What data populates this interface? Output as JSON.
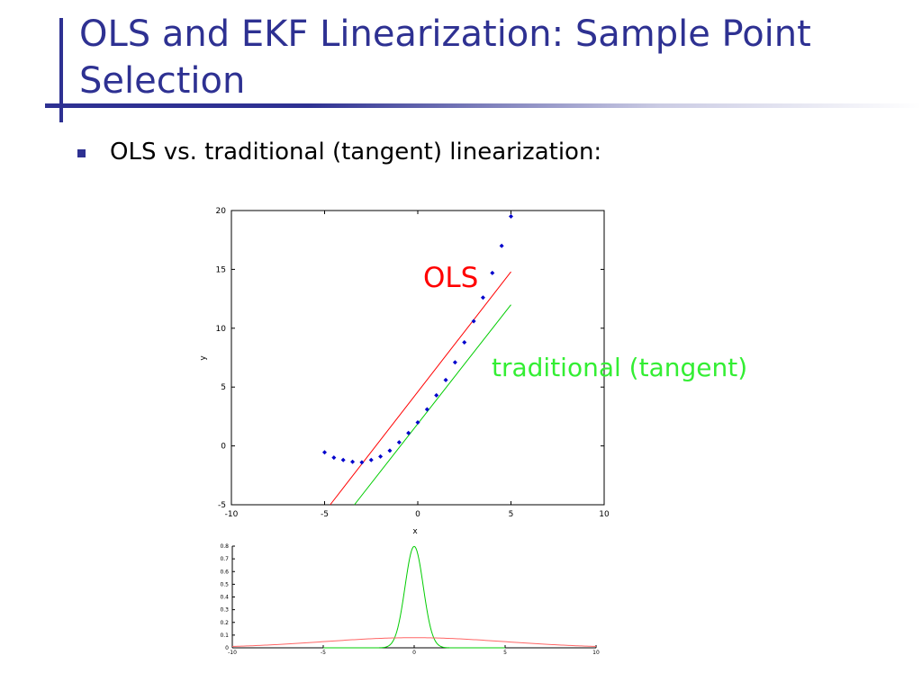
{
  "slide": {
    "title": "OLS and EKF Linearization: Sample Point Selection",
    "bullet": "OLS vs. traditional (tangent) linearization:"
  },
  "colors": {
    "title": "#2e3192",
    "ols": "#ff0000",
    "tangent": "#00cc00",
    "tangent_label": "#33ee33",
    "points": "#0000cc",
    "distribution_wide": "#ff6666"
  },
  "chart_data": [
    {
      "type": "scatter",
      "xlabel": "x",
      "ylabel": "y",
      "xlim": [
        -10,
        10
      ],
      "ylim": [
        -5,
        20
      ],
      "xticks": [
        -10,
        -5,
        0,
        5,
        10
      ],
      "yticks": [
        -5,
        0,
        5,
        10,
        15,
        20
      ],
      "annotations": {
        "ols": "OLS",
        "tangent": "traditional (tangent)"
      },
      "points": {
        "x": [
          -5,
          -4.5,
          -4,
          -3.5,
          -3,
          -2.5,
          -2,
          -1.5,
          -1,
          -0.5,
          0,
          0.5,
          1,
          1.5,
          2,
          2.5,
          3,
          3.5,
          4,
          4.5,
          5
        ],
        "y": [
          -0.55,
          -1.0,
          -1.2,
          -1.35,
          -1.4,
          -1.2,
          -0.9,
          -0.4,
          0.3,
          1.1,
          2.0,
          3.1,
          4.3,
          5.6,
          7.1,
          8.8,
          10.6,
          12.6,
          14.7,
          17.0,
          19.5
        ]
      },
      "lines": [
        {
          "name": "OLS",
          "x": [
            -4.7,
            5
          ],
          "y": [
            -5,
            14.8
          ]
        },
        {
          "name": "traditional (tangent)",
          "x": [
            -3.4,
            5
          ],
          "y": [
            -5,
            12.0
          ]
        }
      ]
    },
    {
      "type": "line",
      "xlim": [
        -10,
        10
      ],
      "ylim": [
        0,
        0.8
      ],
      "xticks": [
        -10,
        -5,
        0,
        5,
        10
      ],
      "yticks": [
        0,
        0.1,
        0.2,
        0.3,
        0.4,
        0.5,
        0.6,
        0.7,
        0.8
      ],
      "curves": [
        {
          "type": "gaussian",
          "mean": 0,
          "sigma": 0.5,
          "xrange": [
            -5,
            5
          ]
        },
        {
          "type": "gaussian",
          "mean": 0,
          "sigma": 5,
          "xrange": [
            -10,
            10
          ]
        }
      ]
    }
  ]
}
